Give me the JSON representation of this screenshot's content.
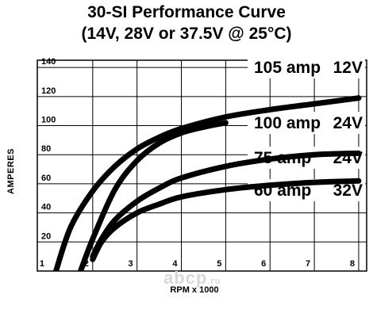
{
  "title_line1": "30-SI Performance Curve",
  "title_line2": "(14V, 28V or 37.5V @ 25°C)",
  "watermark": "abcp",
  "watermark_suffix": ".ru",
  "chart_data": {
    "type": "line",
    "xlabel": "RPM x 1000",
    "ylabel": "AMPERES",
    "xlim": [
      1,
      8
    ],
    "ylim": [
      0,
      140
    ],
    "x_ticks": [
      "1",
      "2",
      "3",
      "4",
      "5",
      "6",
      "7",
      "8"
    ],
    "y_ticks": [
      "20",
      "40",
      "60",
      "80",
      "100",
      "120",
      "140"
    ],
    "grid": true,
    "series": [
      {
        "name": "105 amp 12V",
        "x": [
          1.15,
          1.5,
          2.0,
          2.5,
          3.0,
          3.5,
          4.0,
          5.0,
          6.0,
          7.0,
          8.0
        ],
        "y": [
          0,
          30,
          55,
          72,
          84,
          92,
          98,
          106,
          111,
          115,
          119
        ]
      },
      {
        "name": "100 amp 24V",
        "x": [
          1.7,
          2.0,
          2.5,
          3.0,
          3.5,
          4.0,
          4.5,
          5.0
        ],
        "y": [
          0,
          22,
          56,
          76,
          88,
          95,
          99,
          102
        ]
      },
      {
        "name": "75 amp 24V",
        "x": [
          2.0,
          2.2,
          2.5,
          3.0,
          3.5,
          4.0,
          5.0,
          6.0,
          7.0,
          8.0
        ],
        "y": [
          10,
          22,
          35,
          48,
          57,
          64,
          72,
          77,
          80,
          81
        ]
      },
      {
        "name": "60 amp 32V",
        "x": [
          2.0,
          2.2,
          2.5,
          3.0,
          3.5,
          4.0,
          5.0,
          6.0,
          7.0,
          8.0
        ],
        "y": [
          8,
          20,
          30,
          40,
          46,
          51,
          56,
          59,
          61,
          62
        ]
      }
    ],
    "series_label_rows": [
      {
        "amp": "105 amp",
        "volt": "12V"
      },
      {
        "amp": "100 amp",
        "volt": "24V"
      },
      {
        "amp": "75 amp",
        "volt": "24V"
      },
      {
        "amp": "60 amp",
        "volt": "32V"
      }
    ]
  }
}
